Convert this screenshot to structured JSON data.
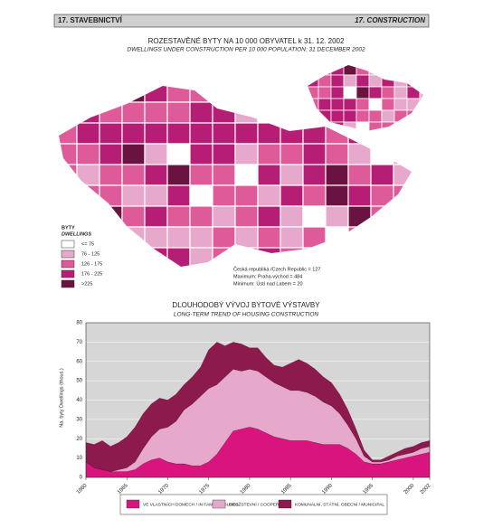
{
  "header": {
    "left": "17. STAVEBNICTVÍ",
    "right": "17. CONSTRUCTION"
  },
  "map": {
    "title": "ROZESTAVĚNÉ BYTY NA 10 000 OBYVATEL k 31. 12. 2002",
    "subtitle": "DWELLINGS UNDER CONSTRUCTION PER 10 000 POPULATION: 31 DECEMBER 2002",
    "legend": {
      "title": "BYTY",
      "subtitle": "DWELLINGS",
      "items": [
        {
          "label": "<= 75",
          "color": "#ffffff"
        },
        {
          "label": "76 - 125",
          "color": "#e6a9cc"
        },
        {
          "label": "126 - 175",
          "color": "#df5a98"
        },
        {
          "label": "176 - 225",
          "color": "#b51e74"
        },
        {
          "label": ">225",
          "color": "#6a1240"
        }
      ]
    },
    "notes": [
      "Česká republika /Czech Republic = 127",
      "Maximum: Praha-východ = 484",
      "Minimum: Ústí nad Labem = 20"
    ]
  },
  "chart_data": {
    "type": "stacked-area",
    "title": "DLOUHODOBÝ VÝVOJ BYTOVÉ VÝSTAVBY",
    "subtitle": "LONG-TERM TREND OF HOUSING CONSTRUCTION",
    "y_label": "Na. byty   Dwellings (thous.)",
    "x": [
      1960,
      1961,
      1962,
      1963,
      1964,
      1965,
      1966,
      1967,
      1968,
      1969,
      1970,
      1971,
      1972,
      1973,
      1974,
      1975,
      1976,
      1977,
      1978,
      1979,
      1980,
      1981,
      1982,
      1983,
      1984,
      1985,
      1986,
      1987,
      1988,
      1989,
      1990,
      1991,
      1992,
      1993,
      1994,
      1995,
      1996,
      1997,
      1998,
      1999,
      2000,
      2001,
      2002
    ],
    "series": [
      {
        "name": "VE VLASTNÍCH DOMECH / IN FAMILY HOUSES",
        "color": "#d9147f",
        "values": [
          8,
          5,
          4,
          3,
          3,
          3,
          4,
          7,
          9,
          10,
          8,
          7,
          7,
          6,
          6,
          8,
          12,
          18,
          24,
          25,
          26,
          25,
          23,
          21,
          20,
          19,
          19,
          19,
          18,
          17,
          17,
          17,
          15,
          12,
          8,
          7,
          7,
          8,
          9,
          10,
          11,
          12,
          13
        ]
      },
      {
        "name": "DRUŽSTEVNÍ / COOPERATIVE",
        "color": "#e6a9cc",
        "values": [
          0,
          0,
          0,
          0,
          1,
          2,
          4,
          8,
          12,
          15,
          18,
          22,
          28,
          32,
          36,
          38,
          36,
          34,
          32,
          30,
          30,
          30,
          29,
          28,
          27,
          26,
          26,
          25,
          24,
          22,
          20,
          16,
          12,
          8,
          3,
          1,
          1,
          1,
          2,
          2,
          2,
          3,
          3
        ]
      },
      {
        "name": "KOMUNÁLNÍ, STÁTNÍ, OBECNÍ / MUNICIPAL",
        "color": "#8c1a4c",
        "values": [
          10,
          12,
          15,
          13,
          14,
          16,
          18,
          18,
          17,
          16,
          14,
          14,
          13,
          14,
          15,
          20,
          22,
          16,
          14,
          14,
          11,
          12,
          10,
          9,
          10,
          14,
          16,
          15,
          14,
          13,
          12,
          10,
          8,
          5,
          3,
          1,
          1,
          2,
          2,
          3,
          3,
          3,
          3
        ]
      }
    ],
    "xlim": [
      1960,
      2002
    ],
    "xticks": [
      1960,
      1965,
      1970,
      1975,
      1980,
      1985,
      1990,
      1995,
      2000,
      2002
    ],
    "ylim": [
      0,
      80
    ],
    "yticks": [
      0,
      10,
      20,
      30,
      40,
      50,
      60,
      70,
      80
    ],
    "grid": true
  }
}
